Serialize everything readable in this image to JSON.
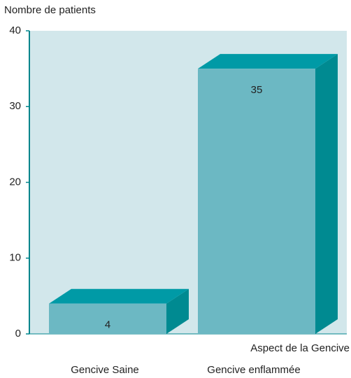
{
  "chart_data": {
    "type": "bar3d",
    "y_label": "Nombre de patients",
    "x_label": "Aspect de la Gencive",
    "categories": [
      "Gencive Saine",
      "Gencive enflammée"
    ],
    "values": [
      4,
      35
    ],
    "color": "#6cb8c3",
    "top_color": "#009aa6",
    "side_color": "#008a91",
    "ylim": [
      0,
      40
    ],
    "yticks": [
      0,
      10,
      20,
      30,
      40
    ]
  }
}
